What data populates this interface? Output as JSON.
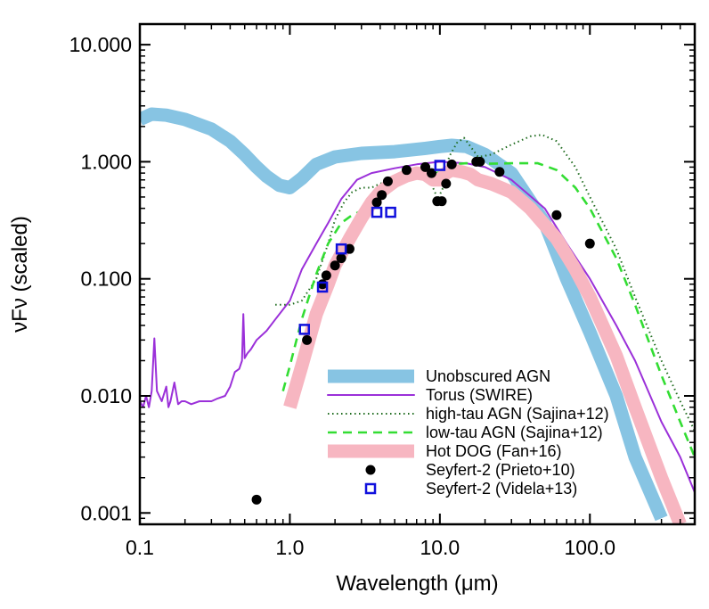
{
  "chart_data": {
    "type": "line",
    "title": "",
    "xlabel": "Wavelength (μm)",
    "ylabel": "νFν (scaled)",
    "xscale": "log",
    "yscale": "log",
    "xlim": [
      0.1,
      500
    ],
    "ylim": [
      0.0008,
      15
    ],
    "xtick_values": [
      0.1,
      1.0,
      10.0,
      100.0
    ],
    "xtick_labels": [
      "0.1",
      "1.0",
      "10.0",
      "100.0"
    ],
    "ytick_values": [
      0.001,
      0.01,
      0.1,
      1.0,
      10.0
    ],
    "ytick_labels": [
      "0.001",
      "0.010",
      "0.100",
      "1.000",
      "10.000"
    ],
    "legend_position": "bottom-right",
    "series": [
      {
        "name": "Unobscured AGN",
        "style": "thick-band",
        "color": "#87c4e3",
        "points": [
          [
            0.1,
            2.3
          ],
          [
            0.12,
            2.55
          ],
          [
            0.15,
            2.5
          ],
          [
            0.2,
            2.3
          ],
          [
            0.3,
            1.9
          ],
          [
            0.4,
            1.5
          ],
          [
            0.5,
            1.15
          ],
          [
            0.6,
            0.9
          ],
          [
            0.7,
            0.75
          ],
          [
            0.85,
            0.63
          ],
          [
            1.0,
            0.6
          ],
          [
            1.2,
            0.72
          ],
          [
            1.5,
            0.95
          ],
          [
            2.0,
            1.1
          ],
          [
            3.0,
            1.18
          ],
          [
            5.0,
            1.22
          ],
          [
            8.0,
            1.3
          ],
          [
            10.0,
            1.35
          ],
          [
            12.0,
            1.38
          ],
          [
            15.0,
            1.35
          ],
          [
            20.0,
            1.15
          ],
          [
            30.0,
            0.8
          ],
          [
            50.0,
            0.3
          ],
          [
            70.0,
            0.1
          ],
          [
            100.0,
            0.035
          ],
          [
            150.0,
            0.01
          ],
          [
            200.0,
            0.003
          ],
          [
            300.0,
            0.0009
          ]
        ]
      },
      {
        "name": "Torus (SWIRE)",
        "style": "line",
        "color": "#9b30d9",
        "points": [
          [
            0.1,
            0.009
          ],
          [
            0.105,
            0.008
          ],
          [
            0.11,
            0.01
          ],
          [
            0.115,
            0.008
          ],
          [
            0.12,
            0.011
          ],
          [
            0.125,
            0.031
          ],
          [
            0.13,
            0.011
          ],
          [
            0.14,
            0.009
          ],
          [
            0.15,
            0.012
          ],
          [
            0.155,
            0.008
          ],
          [
            0.16,
            0.009
          ],
          [
            0.17,
            0.013
          ],
          [
            0.18,
            0.0085
          ],
          [
            0.19,
            0.009
          ],
          [
            0.2,
            0.009
          ],
          [
            0.22,
            0.0085
          ],
          [
            0.25,
            0.009
          ],
          [
            0.28,
            0.009
          ],
          [
            0.3,
            0.009
          ],
          [
            0.33,
            0.0095
          ],
          [
            0.37,
            0.01
          ],
          [
            0.4,
            0.012
          ],
          [
            0.43,
            0.016
          ],
          [
            0.46,
            0.017
          ],
          [
            0.48,
            0.02
          ],
          [
            0.49,
            0.05
          ],
          [
            0.5,
            0.021
          ],
          [
            0.52,
            0.023
          ],
          [
            0.55,
            0.025
          ],
          [
            0.6,
            0.03
          ],
          [
            0.7,
            0.036
          ],
          [
            0.8,
            0.045
          ],
          [
            1.0,
            0.065
          ],
          [
            1.2,
            0.12
          ],
          [
            1.5,
            0.2
          ],
          [
            1.8,
            0.3
          ],
          [
            2.2,
            0.48
          ],
          [
            2.8,
            0.7
          ],
          [
            3.5,
            0.8
          ],
          [
            5.0,
            0.88
          ],
          [
            7.0,
            0.95
          ],
          [
            10.0,
            1.0
          ],
          [
            15.0,
            0.97
          ],
          [
            20.0,
            0.9
          ],
          [
            30.0,
            0.7
          ],
          [
            50.0,
            0.4
          ],
          [
            70.0,
            0.2
          ],
          [
            100.0,
            0.1
          ],
          [
            150.0,
            0.04
          ],
          [
            200.0,
            0.02
          ],
          [
            300.0,
            0.006
          ],
          [
            400.0,
            0.003
          ],
          [
            500.0,
            0.0015
          ]
        ]
      },
      {
        "name": "high-tau AGN (Sajina+12)",
        "style": "dotted",
        "color": "#1e6b1e",
        "points": [
          [
            0.8,
            0.06
          ],
          [
            1.0,
            0.06
          ],
          [
            1.2,
            0.065
          ],
          [
            1.5,
            0.1
          ],
          [
            1.8,
            0.2
          ],
          [
            2.0,
            0.32
          ],
          [
            2.3,
            0.45
          ],
          [
            2.6,
            0.55
          ],
          [
            3.0,
            0.6
          ],
          [
            3.5,
            0.6
          ],
          [
            4.0,
            0.65
          ],
          [
            5.0,
            0.72
          ],
          [
            6.0,
            0.78
          ],
          [
            7.0,
            0.82
          ],
          [
            8.0,
            0.85
          ],
          [
            9.0,
            0.6
          ],
          [
            9.7,
            0.48
          ],
          [
            10.5,
            0.6
          ],
          [
            11.5,
            1.1
          ],
          [
            13.0,
            1.45
          ],
          [
            14.5,
            1.6
          ],
          [
            16.0,
            1.35
          ],
          [
            18.0,
            1.1
          ],
          [
            22.0,
            1.15
          ],
          [
            30.0,
            1.4
          ],
          [
            40.0,
            1.65
          ],
          [
            48.0,
            1.7
          ],
          [
            60.0,
            1.5
          ],
          [
            80.0,
            0.9
          ],
          [
            100.0,
            0.5
          ],
          [
            150.0,
            0.18
          ],
          [
            200.0,
            0.07
          ],
          [
            300.0,
            0.02
          ],
          [
            400.0,
            0.009
          ],
          [
            500.0,
            0.005
          ]
        ]
      },
      {
        "name": "low-tau AGN (Sajina+12)",
        "style": "dashed",
        "color": "#33dd33",
        "points": [
          [
            0.9,
            0.011
          ],
          [
            1.0,
            0.018
          ],
          [
            1.2,
            0.045
          ],
          [
            1.5,
            0.11
          ],
          [
            1.8,
            0.2
          ],
          [
            2.2,
            0.3
          ],
          [
            2.6,
            0.35
          ],
          [
            3.0,
            0.38
          ],
          [
            3.5,
            0.43
          ],
          [
            4.0,
            0.55
          ],
          [
            5.0,
            0.7
          ],
          [
            6.0,
            0.8
          ],
          [
            7.0,
            0.85
          ],
          [
            8.0,
            0.82
          ],
          [
            9.0,
            0.78
          ],
          [
            10.0,
            0.82
          ],
          [
            12.0,
            0.95
          ],
          [
            15.0,
            0.97
          ],
          [
            20.0,
            0.96
          ],
          [
            30.0,
            0.97
          ],
          [
            45.0,
            0.97
          ],
          [
            60.0,
            0.85
          ],
          [
            80.0,
            0.6
          ],
          [
            100.0,
            0.4
          ],
          [
            150.0,
            0.15
          ],
          [
            200.0,
            0.06
          ],
          [
            300.0,
            0.015
          ],
          [
            400.0,
            0.006
          ],
          [
            500.0,
            0.003
          ]
        ]
      },
      {
        "name": "Hot DOG (Fan+16)",
        "style": "thick-band",
        "color": "#f7b6c1",
        "points": [
          [
            1.0,
            0.008
          ],
          [
            1.2,
            0.018
          ],
          [
            1.5,
            0.05
          ],
          [
            1.8,
            0.09
          ],
          [
            2.0,
            0.13
          ],
          [
            2.5,
            0.22
          ],
          [
            3.0,
            0.33
          ],
          [
            3.5,
            0.45
          ],
          [
            4.0,
            0.55
          ],
          [
            5.0,
            0.68
          ],
          [
            6.0,
            0.76
          ],
          [
            7.0,
            0.8
          ],
          [
            8.0,
            0.78
          ],
          [
            9.0,
            0.7
          ],
          [
            10.0,
            0.7
          ],
          [
            11.0,
            0.8
          ],
          [
            12.0,
            0.85
          ],
          [
            14.0,
            0.82
          ],
          [
            16.0,
            0.78
          ],
          [
            18.0,
            0.7
          ],
          [
            22.0,
            0.65
          ],
          [
            30.0,
            0.55
          ],
          [
            40.0,
            0.4
          ],
          [
            60.0,
            0.22
          ],
          [
            80.0,
            0.12
          ],
          [
            100.0,
            0.07
          ],
          [
            150.0,
            0.022
          ],
          [
            200.0,
            0.008
          ],
          [
            300.0,
            0.002
          ],
          [
            400.0,
            0.0008
          ]
        ]
      }
    ],
    "scatter": [
      {
        "name": "Seyfert-2 (Prieto+10)",
        "marker": "filled-circle",
        "color": "#000000",
        "points": [
          [
            0.6,
            0.0013
          ],
          [
            1.3,
            0.03
          ],
          [
            1.65,
            0.09
          ],
          [
            1.75,
            0.107
          ],
          [
            2.0,
            0.13
          ],
          [
            2.2,
            0.15
          ],
          [
            2.5,
            0.18
          ],
          [
            3.8,
            0.45
          ],
          [
            4.1,
            0.52
          ],
          [
            4.5,
            0.68
          ],
          [
            6.0,
            0.85
          ],
          [
            8.0,
            0.9
          ],
          [
            8.8,
            0.8
          ],
          [
            9.6,
            0.46
          ],
          [
            10.3,
            0.46
          ],
          [
            11.0,
            0.65
          ],
          [
            12.0,
            0.95
          ],
          [
            17.5,
            1.0
          ],
          [
            18.5,
            1.0
          ],
          [
            25.0,
            0.82
          ],
          [
            60.0,
            0.35
          ],
          [
            100.0,
            0.2
          ]
        ]
      },
      {
        "name": "Seyfert-2 (Videla+13)",
        "marker": "open-square",
        "color": "#1010dd",
        "points": [
          [
            1.25,
            0.037
          ],
          [
            1.65,
            0.085
          ],
          [
            2.2,
            0.18
          ],
          [
            3.8,
            0.37
          ],
          [
            4.7,
            0.37
          ],
          [
            10.0,
            0.93
          ]
        ]
      }
    ]
  }
}
